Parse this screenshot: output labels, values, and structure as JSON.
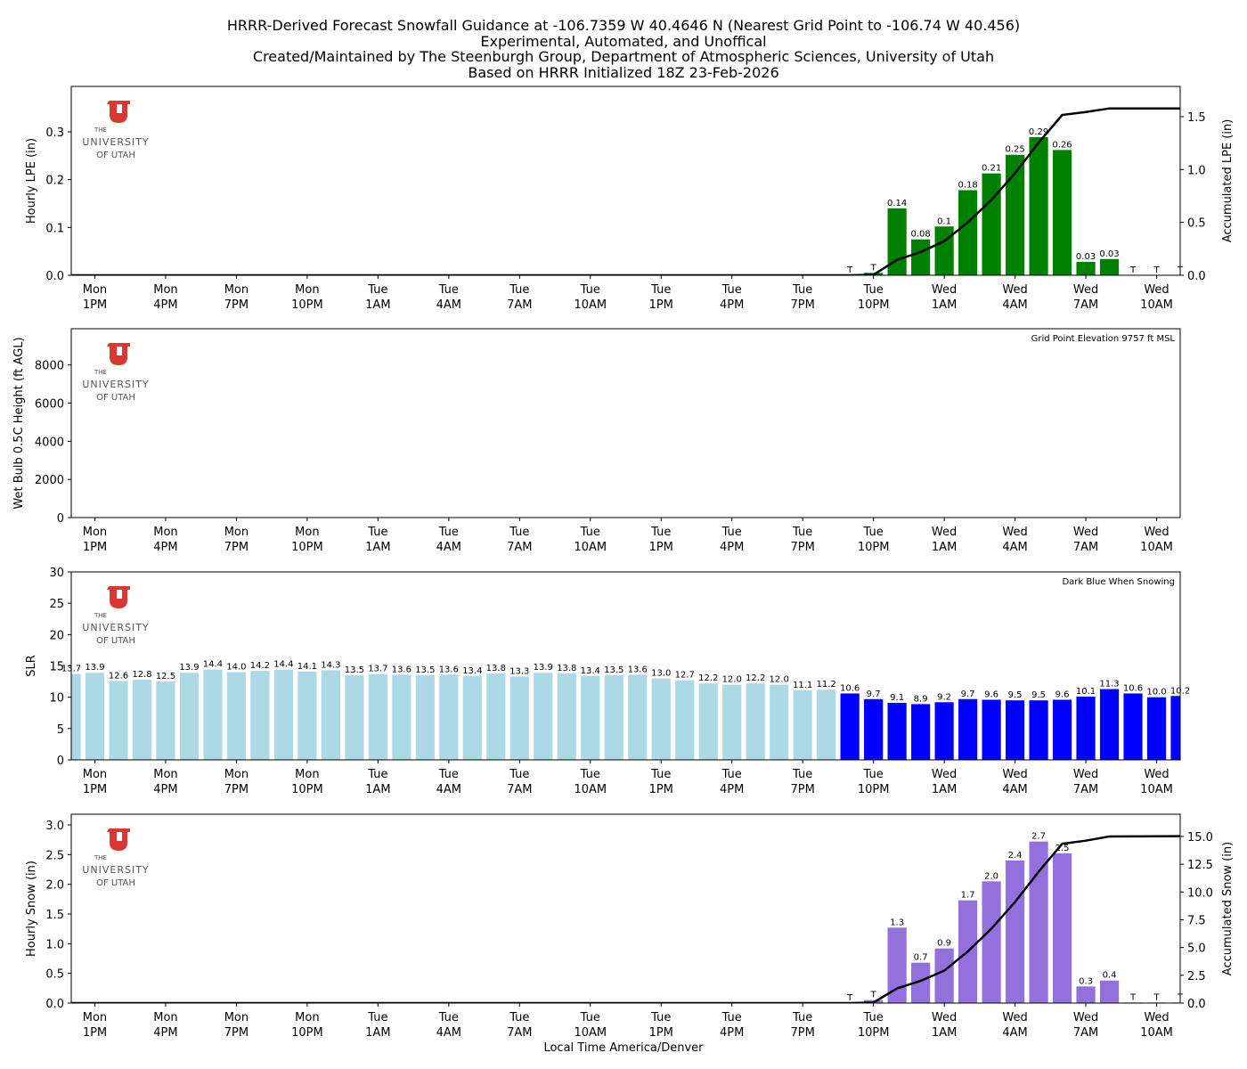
{
  "title_lines": [
    "HRRR-Derived Forecast Snowfall Guidance at -106.7359 W 40.4646 N (Nearest Grid Point to -106.74 W 40.456)",
    "Experimental, Automated, and Unoffical",
    "Created/Maintained by The Steenburgh Group, Department of Atmospheric Sciences, University of Utah",
    "Based on HRRR Initialized 18Z 23-Feb-2026"
  ],
  "logo": {
    "line1": "THE",
    "line2": "UNIVERSITY",
    "line3": "OF UTAH",
    "color": "#d7382f"
  },
  "xlabel": "Local Time America/Denver",
  "x_ticks": [
    {
      "hour": 1,
      "day": "Mon",
      "time": "1PM"
    },
    {
      "hour": 4,
      "day": "Mon",
      "time": "4PM"
    },
    {
      "hour": 7,
      "day": "Mon",
      "time": "7PM"
    },
    {
      "hour": 10,
      "day": "Mon",
      "time": "10PM"
    },
    {
      "hour": 13,
      "day": "Tue",
      "time": "1AM"
    },
    {
      "hour": 16,
      "day": "Tue",
      "time": "4AM"
    },
    {
      "hour": 19,
      "day": "Tue",
      "time": "7AM"
    },
    {
      "hour": 22,
      "day": "Tue",
      "time": "10AM"
    },
    {
      "hour": 25,
      "day": "Tue",
      "time": "1PM"
    },
    {
      "hour": 28,
      "day": "Tue",
      "time": "4PM"
    },
    {
      "hour": 31,
      "day": "Tue",
      "time": "7PM"
    },
    {
      "hour": 34,
      "day": "Tue",
      "time": "10PM"
    },
    {
      "hour": 37,
      "day": "Wed",
      "time": "1AM"
    },
    {
      "hour": 40,
      "day": "Wed",
      "time": "4AM"
    },
    {
      "hour": 43,
      "day": "Wed",
      "time": "7AM"
    },
    {
      "hour": 46,
      "day": "Wed",
      "time": "10AM"
    }
  ],
  "chart_data": [
    {
      "type": "bar",
      "ylabel": "Hourly LPE (in)",
      "ylabel_right": "Accumulated LPE (in)",
      "ylim": [
        0,
        0.395
      ],
      "ylim_right": [
        0,
        1.786
      ],
      "yticks": [
        "0.0",
        "0.1",
        "0.2",
        "0.3"
      ],
      "yticks_right": [
        "0.0",
        "0.5",
        "1.0",
        "1.5"
      ],
      "bar_color": "#008000",
      "start_index": 33,
      "values": [
        0.0,
        0.005,
        0.14,
        0.075,
        0.102,
        0.178,
        0.213,
        0.252,
        0.289,
        0.262,
        0.028,
        0.034,
        0.0,
        0.0,
        0.0
      ],
      "labels": [
        "T",
        "T",
        "0.14",
        "0.08",
        "0.1",
        "0.18",
        "0.21",
        "0.25",
        "0.29",
        "0.26",
        "0.03",
        "0.03",
        "T",
        "T",
        "T"
      ],
      "accumulated_line": true
    },
    {
      "type": "bar",
      "ylabel": "Wet Bulb 0.5C Height (ft AGL)",
      "ylim": [
        0,
        9900
      ],
      "yticks": [
        "0",
        "2000",
        "4000",
        "6000",
        "8000"
      ],
      "annotation": "Grid Point Elevation 9757 ft MSL",
      "values": []
    },
    {
      "type": "bar",
      "ylabel": "SLR",
      "ylim": [
        0,
        30
      ],
      "yticks": [
        "0",
        "5",
        "10",
        "15",
        "20",
        "25",
        "30"
      ],
      "annotation": "Dark Blue When Snowing",
      "color_not_snowing": "#add8e6",
      "color_snowing": "#0000ff",
      "snowing_from_index": 33,
      "values": [
        13.7,
        13.9,
        12.6,
        12.8,
        12.5,
        13.9,
        14.4,
        14.0,
        14.2,
        14.4,
        14.1,
        14.3,
        13.5,
        13.7,
        13.6,
        13.5,
        13.6,
        13.4,
        13.8,
        13.3,
        13.9,
        13.8,
        13.4,
        13.5,
        13.6,
        13.0,
        12.7,
        12.2,
        12.0,
        12.2,
        12.0,
        11.1,
        11.2,
        10.6,
        9.7,
        9.1,
        8.9,
        9.2,
        9.7,
        9.6,
        9.5,
        9.5,
        9.6,
        10.1,
        11.3,
        10.6,
        10.0,
        10.2
      ]
    },
    {
      "type": "bar",
      "ylabel": "Hourly Snow (in)",
      "ylabel_right": "Accumulated Snow (in)",
      "ylim": [
        0,
        3.18
      ],
      "ylim_right": [
        0,
        17.0
      ],
      "yticks": [
        "0.0",
        "0.5",
        "1.0",
        "1.5",
        "2.0",
        "2.5",
        "3.0"
      ],
      "yticks_right": [
        "0.0",
        "2.5",
        "5.0",
        "7.5",
        "10.0",
        "12.5",
        "15.0"
      ],
      "bar_color": "#9370db",
      "start_index": 33,
      "values": [
        0.0,
        0.05,
        1.27,
        0.68,
        0.92,
        1.73,
        2.05,
        2.4,
        2.72,
        2.52,
        0.28,
        0.38,
        0.01,
        0.01,
        0.01
      ],
      "labels": [
        "T",
        "T",
        "1.3",
        "0.7",
        "0.9",
        "1.7",
        "2.0",
        "2.4",
        "2.7",
        "2.5",
        "0.3",
        "0.4",
        "T",
        "T",
        "T"
      ],
      "accumulated_line": true
    }
  ]
}
